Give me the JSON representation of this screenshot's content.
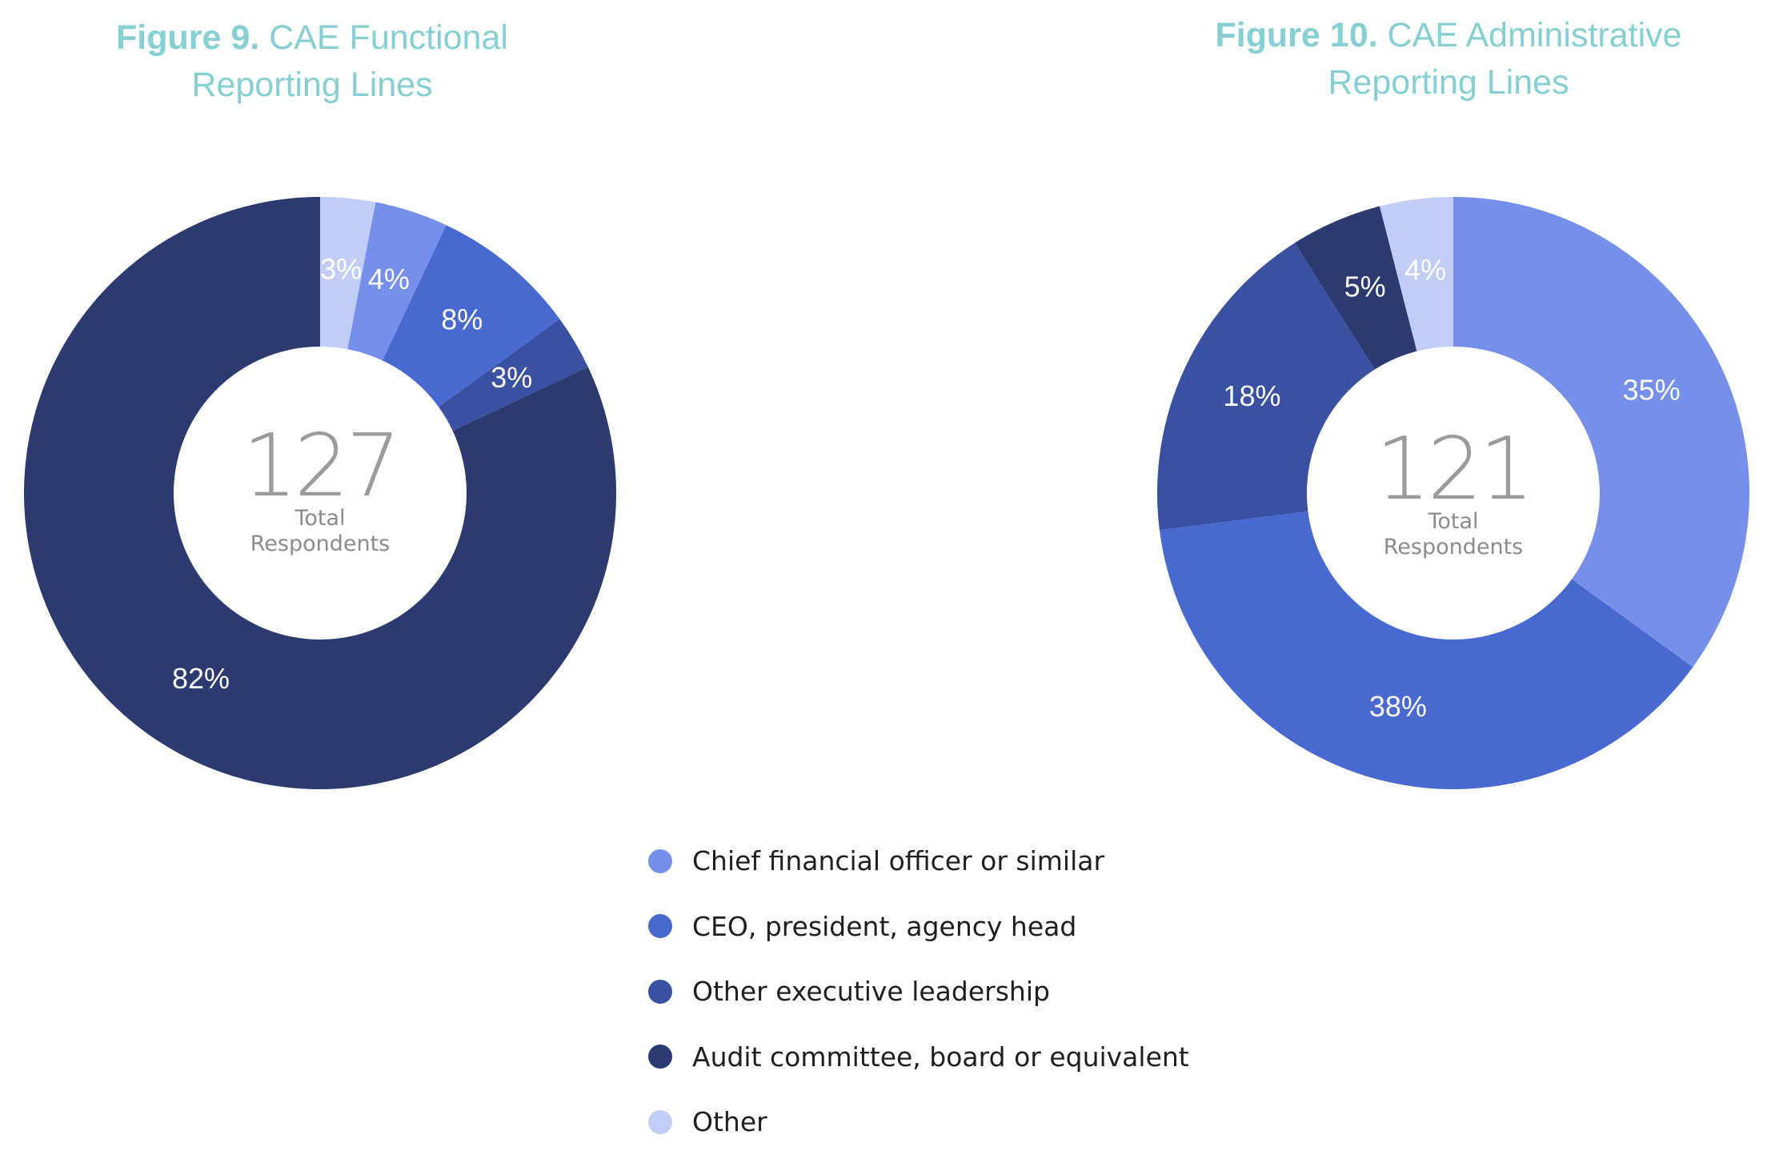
{
  "colors": {
    "cfo": "#7590e8",
    "ceo": "#4869cf",
    "other_exec": "#3951a0",
    "audit": "#2b3a71",
    "other": "#c2cdf5",
    "title": "#86cfd2"
  },
  "legend": [
    {
      "label": "Chief financial officer or similar",
      "color_key": "cfo"
    },
    {
      "label": "CEO, president, agency head",
      "color_key": "ceo"
    },
    {
      "label": "Other executive leadership",
      "color_key": "other_exec"
    },
    {
      "label": "Audit committee, board or equivalent",
      "color_key": "audit"
    },
    {
      "label": "Other",
      "color_key": "other"
    }
  ],
  "chart_data": [
    {
      "type": "pie",
      "donut": true,
      "title_prefix": "Figure 9.",
      "title": "CAE Functional Reporting Lines",
      "title_line1": "CAE Functional",
      "title_line2": "Reporting Lines",
      "center_total": "127",
      "center_label_line1": "Total",
      "center_label_line2": "Respondents",
      "slices": [
        {
          "category": "Other",
          "value": 3,
          "label": "3%",
          "color_key": "other"
        },
        {
          "category": "Chief financial officer or similar",
          "value": 4,
          "label": "4%",
          "color_key": "cfo"
        },
        {
          "category": "CEO, president, agency head",
          "value": 8,
          "label": "8%",
          "color_key": "ceo"
        },
        {
          "category": "Other executive leadership",
          "value": 3,
          "label": "3%",
          "color_key": "other_exec"
        },
        {
          "category": "Audit committee, board or equivalent",
          "value": 82,
          "label": "82%",
          "color_key": "audit"
        }
      ]
    },
    {
      "type": "pie",
      "donut": true,
      "title_prefix": "Figure 10.",
      "title": "CAE Administrative Reporting Lines",
      "title_line1": "CAE Administrative",
      "title_line2": "Reporting Lines",
      "center_total": "121",
      "center_label_line1": "Total",
      "center_label_line2": "Respondents",
      "slices": [
        {
          "category": "Chief financial officer or similar",
          "value": 35,
          "label": "35%",
          "color_key": "cfo"
        },
        {
          "category": "CEO, president, agency head",
          "value": 38,
          "label": "38%",
          "color_key": "ceo"
        },
        {
          "category": "Other executive leadership",
          "value": 18,
          "label": "18%",
          "color_key": "other_exec"
        },
        {
          "category": "Audit committee, board or equivalent",
          "value": 5,
          "label": "5%",
          "color_key": "audit"
        },
        {
          "category": "Other",
          "value": 4,
          "label": "4%",
          "color_key": "other"
        }
      ]
    }
  ]
}
